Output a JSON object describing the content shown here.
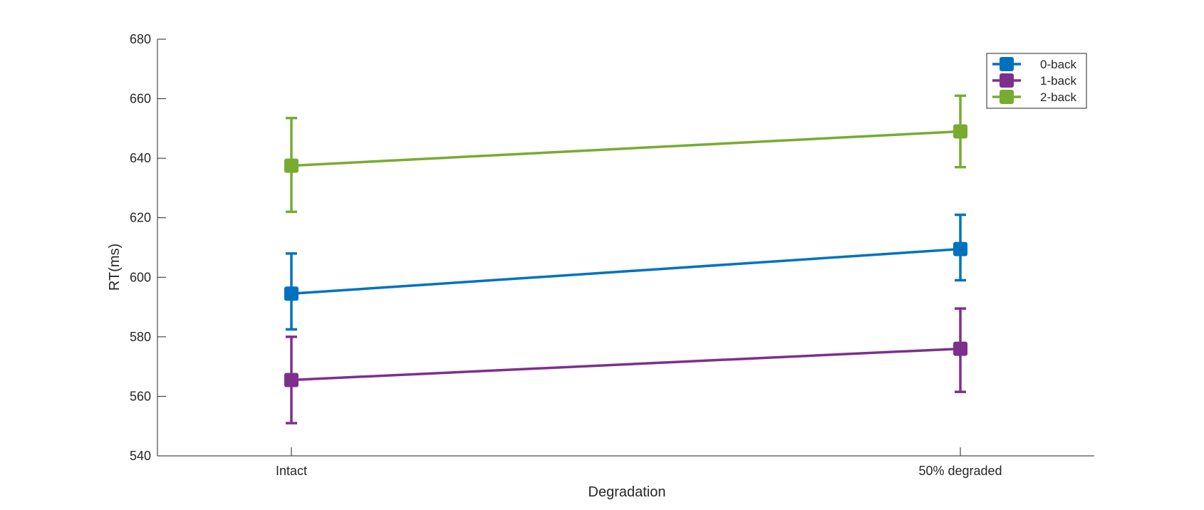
{
  "chart_data": {
    "type": "line",
    "title": "",
    "xlabel": "Degradation",
    "ylabel": "RT(ms)",
    "categories": [
      "Intact",
      "50% degraded"
    ],
    "ylim": [
      540,
      680
    ],
    "yticks": [
      540,
      560,
      580,
      600,
      620,
      640,
      660,
      680
    ],
    "grid": false,
    "legend_position": "top-right",
    "series": [
      {
        "name": "0-back",
        "color": "#0072BD",
        "values": [
          594.5,
          609.5
        ],
        "error_low": [
          582.5,
          599
        ],
        "error_high": [
          608,
          621
        ]
      },
      {
        "name": "1-back",
        "color": "#7E2F8E",
        "values": [
          565.5,
          576
        ],
        "error_low": [
          551,
          561.5
        ],
        "error_high": [
          580,
          589.5
        ]
      },
      {
        "name": "2-back",
        "color": "#77AC30",
        "values": [
          637.5,
          649
        ],
        "error_low": [
          622,
          637
        ],
        "error_high": [
          653.5,
          661
        ]
      }
    ]
  }
}
